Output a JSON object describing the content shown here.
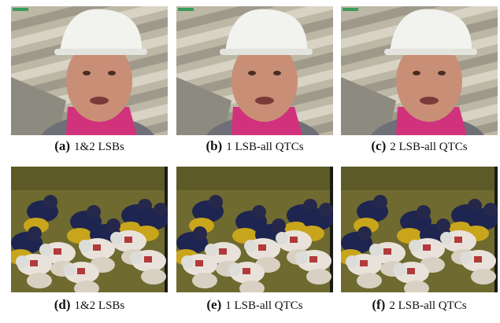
{
  "figure": {
    "panels": [
      {
        "label": "(a)",
        "caption": "1&2 LSBs"
      },
      {
        "label": "(b)",
        "caption": "1 LSB-all QTCs"
      },
      {
        "label": "(c)",
        "caption": "2 LSB-all QTCs"
      },
      {
        "label": "(d)",
        "caption": "1&2 LSBs"
      },
      {
        "label": "(e)",
        "caption": "1 LSB-all QTCs"
      },
      {
        "label": "(f)",
        "caption": "2 LSB-all QTCs"
      }
    ]
  }
}
